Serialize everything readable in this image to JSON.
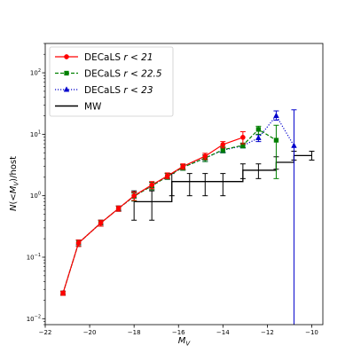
{
  "chart_data": {
    "type": "line",
    "xlabel": "M_V",
    "ylabel": "N(<M_V)/host",
    "xlim": [
      -22,
      -9.5
    ],
    "ylim": [
      0.008,
      300
    ],
    "yscale": "log",
    "xticks": [
      -22,
      -20,
      -18,
      -16,
      -14,
      -12,
      -10
    ],
    "xtick_labels": [
      "−22",
      "−20",
      "−18",
      "−16",
      "−14",
      "−12",
      "−10"
    ],
    "yticks": [
      0.01,
      0.1,
      1,
      10,
      100
    ],
    "legend_position": "top-left",
    "series": [
      {
        "name": "DECaLS r < 21",
        "label_prefix": "DECaLS ",
        "label_math": "r < 21",
        "color": "#ff0000",
        "linestyle": "solid",
        "marker": "circle",
        "x": [
          -21.2,
          -20.5,
          -19.5,
          -18.7,
          -18.0,
          -17.2,
          -16.5,
          -15.8,
          -14.8,
          -14.0,
          -13.1
        ],
        "y": [
          0.026,
          0.17,
          0.36,
          0.62,
          1.0,
          1.5,
          2.1,
          3.0,
          4.4,
          6.8,
          8.9
        ],
        "yerr_low": [
          0.024,
          0.15,
          0.32,
          0.56,
          0.84,
          1.3,
          1.9,
          2.7,
          3.9,
          6.0,
          7.0
        ],
        "yerr_high": [
          0.028,
          0.19,
          0.4,
          0.68,
          1.15,
          1.7,
          2.35,
          3.3,
          4.9,
          7.6,
          11.0
        ]
      },
      {
        "name": "DECaLS r < 22.5",
        "label_prefix": "DECaLS ",
        "label_math": "r < 22.5",
        "color": "#008000",
        "linestyle": "dashed",
        "marker": "square",
        "x": [
          -21.2,
          -20.5,
          -19.5,
          -18.7,
          -18.0,
          -17.2,
          -16.5,
          -15.8,
          -14.8,
          -14.0,
          -13.1,
          -12.4,
          -11.6
        ],
        "y": [
          0.026,
          0.17,
          0.36,
          0.62,
          0.98,
          1.45,
          2.05,
          2.9,
          4.1,
          5.6,
          6.6,
          12.0,
          8.0
        ],
        "yerr_low": [
          0.024,
          0.15,
          0.32,
          0.56,
          0.82,
          1.25,
          1.85,
          2.6,
          3.6,
          5.0,
          6.0,
          10.0,
          1.9
        ],
        "yerr_high": [
          0.028,
          0.19,
          0.4,
          0.68,
          1.12,
          1.65,
          2.3,
          3.2,
          4.6,
          6.2,
          7.2,
          13.5,
          14.0
        ]
      },
      {
        "name": "DECaLS r < 23",
        "label_prefix": "DECaLS ",
        "label_math": "r < 23",
        "color": "#0000cc",
        "linestyle": "dotted",
        "marker": "triangle",
        "x": [
          -21.2,
          -20.5,
          -19.5,
          -18.7,
          -18.0,
          -17.2,
          -16.5,
          -15.8,
          -14.8,
          -14.0,
          -13.1,
          -12.4,
          -11.6,
          -10.8
        ],
        "y": [
          0.026,
          0.17,
          0.36,
          0.62,
          0.98,
          1.45,
          2.05,
          2.9,
          4.1,
          5.5,
          6.5,
          8.7,
          20.0,
          6.5
        ],
        "yerr_low": [
          0.024,
          0.15,
          0.32,
          0.56,
          0.82,
          1.25,
          1.85,
          2.6,
          3.6,
          5.0,
          6.0,
          7.6,
          17.0,
          0.006
        ],
        "yerr_high": [
          0.028,
          0.19,
          0.4,
          0.68,
          1.12,
          1.65,
          2.3,
          3.2,
          4.6,
          6.0,
          7.0,
          9.8,
          24.0,
          25.0
        ]
      },
      {
        "name": "MW",
        "label_prefix": "MW",
        "label_math": "",
        "color": "#000000",
        "linestyle": "steps",
        "marker": "none",
        "x": [
          -18,
          -17.2,
          -16.3,
          -15.5,
          -14.8,
          -14.0,
          -13.1,
          -12.4,
          -11.6,
          -10.8,
          -10.0
        ],
        "y": [
          0.8,
          0.8,
          1.7,
          1.7,
          1.7,
          1.7,
          2.6,
          2.6,
          3.5,
          4.5,
          4.5
        ],
        "yerr_low": [
          0.4,
          0.4,
          1.0,
          1.0,
          1.0,
          1.0,
          1.9,
          1.9,
          2.7,
          3.8,
          3.8
        ],
        "yerr_high": [
          1.2,
          1.2,
          2.3,
          2.3,
          2.3,
          2.3,
          3.3,
          3.3,
          4.3,
          5.3,
          5.3
        ]
      }
    ]
  }
}
